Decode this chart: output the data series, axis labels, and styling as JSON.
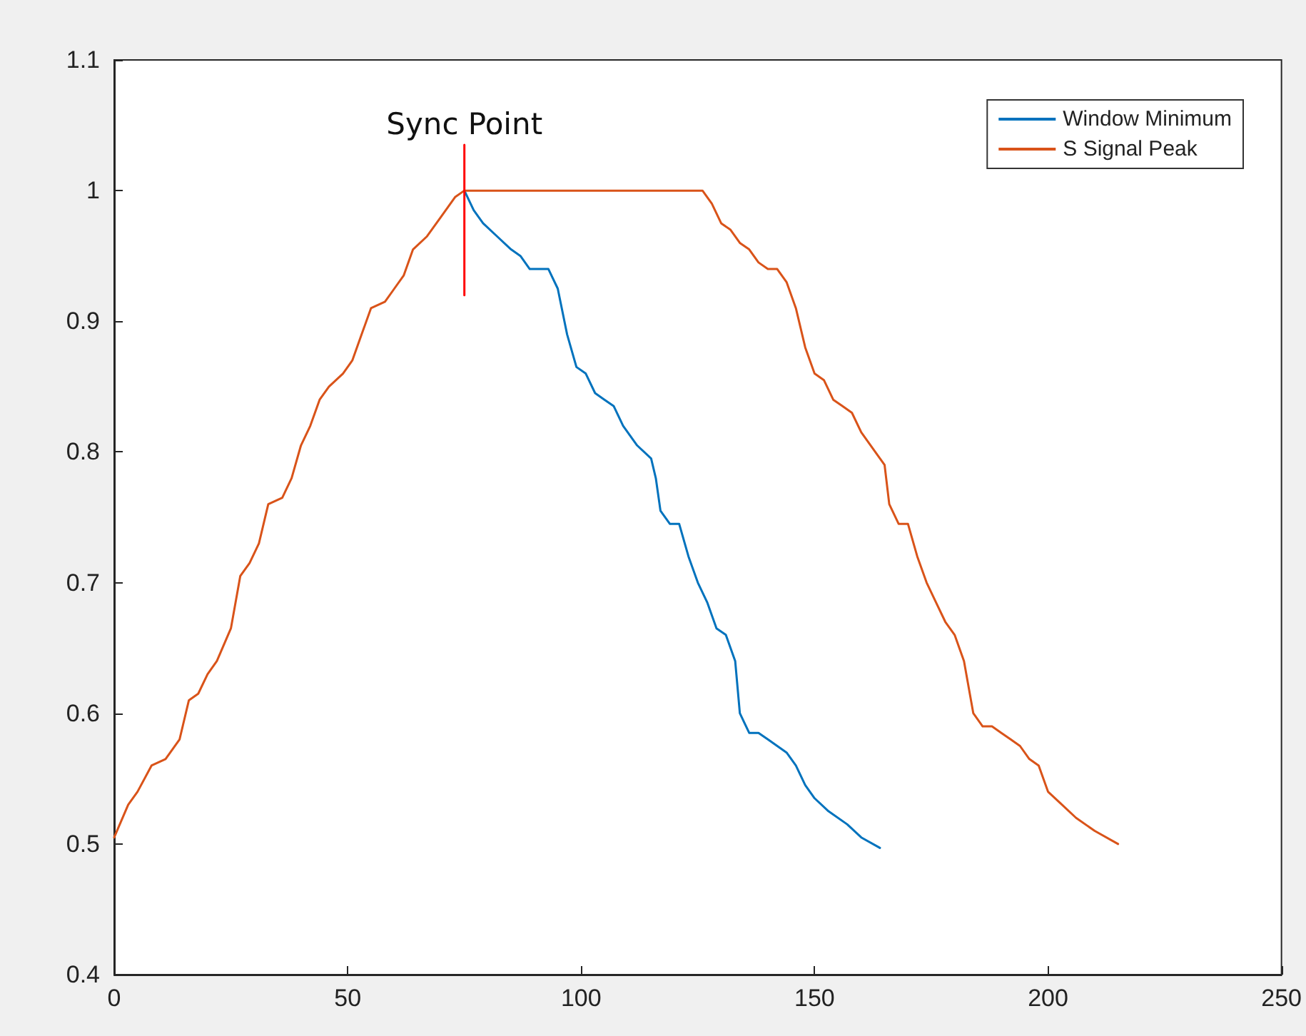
{
  "chart_data": {
    "type": "line",
    "xlim": [
      0,
      250
    ],
    "xticks": [
      0,
      50,
      100,
      150,
      200,
      250
    ],
    "ylim": [
      0.4,
      1.1
    ],
    "yticks": [
      0.4,
      0.5,
      0.6,
      0.7,
      0.8,
      0.9,
      1,
      1.1
    ],
    "grid": false,
    "legend": "top right",
    "marker": "none",
    "line_style": "solid",
    "annotations": [
      {
        "text": "Sync Point",
        "x": 75,
        "y": 1.035
      }
    ],
    "series": [
      {
        "name": "Window Minimum",
        "color": "#0072bd",
        "x": [
          75,
          77,
          79,
          82,
          85,
          87,
          89,
          93,
          95,
          97,
          99,
          101,
          103,
          105,
          107,
          109,
          112,
          115,
          116,
          117,
          119,
          121,
          123,
          125,
          127,
          129,
          131,
          133,
          134,
          136,
          138,
          140,
          142,
          144,
          146,
          148,
          150,
          153,
          157,
          160,
          164
        ],
        "values": [
          1.0,
          0.985,
          0.975,
          0.965,
          0.955,
          0.95,
          0.94,
          0.94,
          0.925,
          0.89,
          0.865,
          0.86,
          0.845,
          0.84,
          0.835,
          0.82,
          0.805,
          0.795,
          0.78,
          0.755,
          0.745,
          0.745,
          0.72,
          0.7,
          0.685,
          0.665,
          0.66,
          0.64,
          0.6,
          0.585,
          0.585,
          0.58,
          0.575,
          0.57,
          0.56,
          0.545,
          0.535,
          0.525,
          0.515,
          0.505,
          0.497
        ]
      },
      {
        "name": "S Signal Peak",
        "color": "#d95319",
        "x": [
          0,
          3,
          5,
          8,
          11,
          14,
          16,
          18,
          20,
          22,
          25,
          27,
          29,
          31,
          33,
          36,
          38,
          40,
          42,
          44,
          46,
          49,
          51,
          53,
          55,
          58,
          60,
          62,
          64,
          67,
          70,
          73,
          75,
          126,
          128,
          130,
          132,
          134,
          136,
          138,
          140,
          142,
          144,
          146,
          148,
          150,
          152,
          154,
          156,
          158,
          160,
          163,
          165,
          166,
          168,
          170,
          172,
          174,
          176,
          178,
          180,
          182,
          184,
          186,
          188,
          190,
          192,
          194,
          196,
          198,
          200,
          203,
          206,
          210,
          215
        ],
        "values": [
          0.505,
          0.53,
          0.54,
          0.56,
          0.565,
          0.58,
          0.61,
          0.615,
          0.63,
          0.64,
          0.665,
          0.705,
          0.715,
          0.73,
          0.76,
          0.765,
          0.78,
          0.805,
          0.82,
          0.84,
          0.85,
          0.86,
          0.87,
          0.89,
          0.91,
          0.915,
          0.925,
          0.935,
          0.955,
          0.965,
          0.98,
          0.995,
          1.0,
          1.0,
          0.99,
          0.975,
          0.97,
          0.96,
          0.955,
          0.945,
          0.94,
          0.94,
          0.93,
          0.91,
          0.88,
          0.86,
          0.855,
          0.84,
          0.835,
          0.83,
          0.815,
          0.8,
          0.79,
          0.76,
          0.745,
          0.745,
          0.72,
          0.7,
          0.685,
          0.67,
          0.66,
          0.64,
          0.6,
          0.59,
          0.59,
          0.585,
          0.58,
          0.575,
          0.565,
          0.56,
          0.54,
          0.53,
          0.52,
          0.51,
          0.5
        ]
      },
      {
        "color": "#ff0000",
        "x": [
          75,
          75
        ],
        "values": [
          0.92,
          1.035
        ]
      }
    ]
  }
}
